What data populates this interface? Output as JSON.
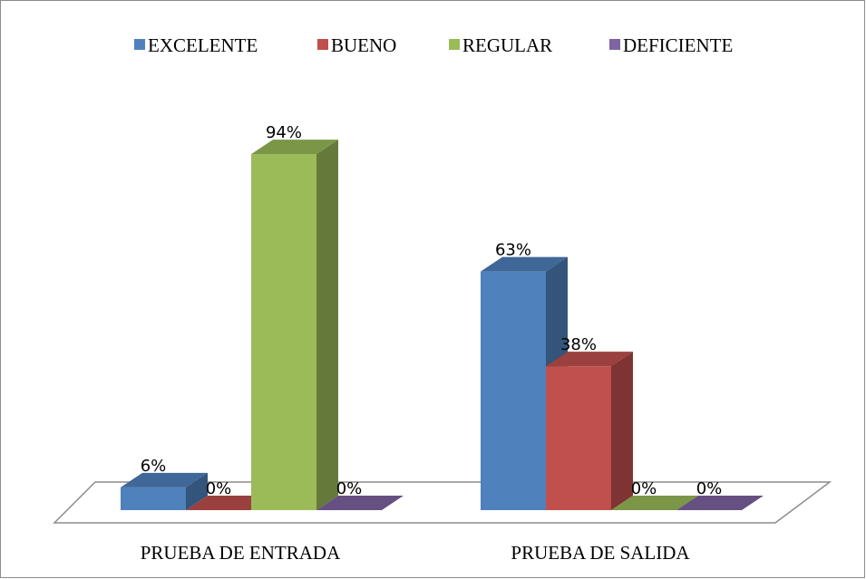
{
  "chart_data": {
    "type": "bar3d",
    "categories": [
      "PRUEBA DE ENTRADA",
      "PRUEBA DE SALIDA"
    ],
    "series": [
      {
        "name": "EXCELENTE",
        "color": "#4f81bd",
        "values": [
          6,
          63
        ],
        "value_labels": [
          "6%",
          "63%"
        ]
      },
      {
        "name": "BUENO",
        "color": "#c0504d",
        "values": [
          0,
          38
        ],
        "value_labels": [
          "0%",
          "38%"
        ]
      },
      {
        "name": "REGULAR",
        "color": "#9bbb59",
        "values": [
          94,
          0
        ],
        "value_labels": [
          "94%",
          "0%"
        ]
      },
      {
        "name": "DEFICIENTE",
        "color": "#8064a2",
        "values": [
          0,
          0
        ],
        "value_labels": [
          "0%",
          "0%"
        ]
      }
    ],
    "legend": "top"
  }
}
